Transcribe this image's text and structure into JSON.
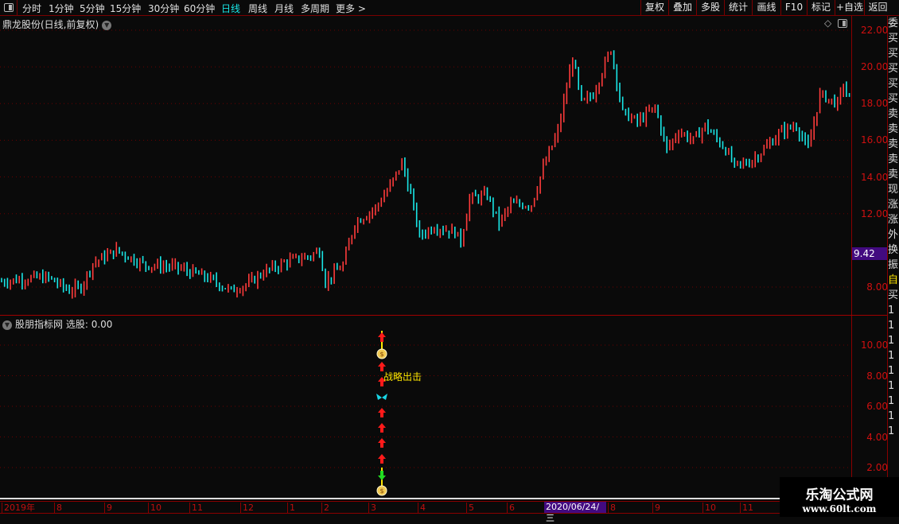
{
  "toolbar": {
    "periods": [
      "分时",
      "1分钟",
      "5分钟",
      "15分钟",
      "30分钟",
      "60分钟",
      "日线",
      "周线",
      "月线",
      "多周期",
      "更多 >"
    ],
    "active_period": "日线",
    "right_buttons": [
      "复权",
      "叠加",
      "多股",
      "统计",
      "画线",
      "F10",
      "标记",
      "+自选",
      "返回"
    ]
  },
  "chart": {
    "title": "鼎龙股份(日线,前复权)",
    "y_ticks": [
      "22.00",
      "20.00",
      "18.00",
      "16.00",
      "14.00",
      "12.00",
      "8.00"
    ],
    "current_price": "9.42",
    "colors": {
      "up": "#ff3b3b",
      "down": "#19e6e6",
      "grid": "#6a0000",
      "axis_text": "#d01010"
    }
  },
  "chart_data": {
    "type": "bar",
    "ylim": [
      7,
      22.5
    ],
    "price_trend": [
      [
        0,
        8.3
      ],
      [
        11,
        8.5
      ],
      [
        16,
        8.5
      ],
      [
        23,
        7.8
      ],
      [
        27,
        8.0
      ],
      [
        31,
        9.3
      ],
      [
        39,
        10.0
      ],
      [
        45,
        9.5
      ],
      [
        49,
        9.2
      ],
      [
        59,
        9.1
      ],
      [
        70,
        8.5
      ],
      [
        78,
        7.8
      ],
      [
        84,
        8.2
      ],
      [
        89,
        8.8
      ],
      [
        97,
        9.4
      ],
      [
        105,
        9.7
      ],
      [
        108,
        10.0
      ],
      [
        110,
        8.3
      ],
      [
        116,
        9.2
      ],
      [
        120,
        11.5
      ],
      [
        127,
        12.3
      ],
      [
        132,
        13.5
      ],
      [
        136,
        14.8
      ],
      [
        139,
        13.0
      ],
      [
        142,
        10.8
      ],
      [
        147,
        11.3
      ],
      [
        154,
        11.0
      ],
      [
        156,
        10.5
      ],
      [
        159,
        12.8
      ],
      [
        165,
        13.0
      ],
      [
        169,
        11.5
      ],
      [
        173,
        12.5
      ],
      [
        180,
        12.5
      ],
      [
        184,
        14.5
      ],
      [
        189,
        16.5
      ],
      [
        194,
        20.5
      ],
      [
        197,
        18.0
      ],
      [
        201,
        18.5
      ],
      [
        207,
        21.0
      ],
      [
        211,
        17.5
      ],
      [
        216,
        17.0
      ],
      [
        222,
        17.8
      ],
      [
        226,
        15.5
      ],
      [
        230,
        16.5
      ],
      [
        235,
        16.0
      ],
      [
        239,
        16.8
      ],
      [
        246,
        15.5
      ],
      [
        249,
        14.6
      ],
      [
        254,
        14.8
      ],
      [
        259,
        15.5
      ],
      [
        265,
        16.5
      ],
      [
        270,
        16.8
      ],
      [
        274,
        15.5
      ],
      [
        278,
        18.5
      ],
      [
        284,
        18.0
      ],
      [
        286,
        19.0
      ],
      [
        289,
        17.8
      ]
    ]
  },
  "indicator": {
    "title": "股朋指标网",
    "select_label": "选股: 0.00",
    "y_ticks": [
      "10.00",
      "8.00",
      "6.00",
      "4.00",
      "2.00"
    ],
    "signal_text": "战略出击"
  },
  "date_axis": {
    "labels": [
      "2019年",
      "8",
      "9",
      "10",
      "11",
      "12",
      "1",
      "2",
      "3",
      "4",
      "5",
      "6",
      "8",
      "9",
      "10",
      "11"
    ],
    "cursor_date": "2020/06/24/三"
  },
  "watermark": {
    "name": "乐淘公式网",
    "url": "www.60lt.com"
  },
  "right_column": [
    "委",
    "买",
    "买",
    "买",
    "买",
    "买",
    "卖",
    "卖",
    "卖",
    "卖",
    "卖",
    "现",
    "涨",
    "涨",
    "外",
    "换",
    "振",
    "自",
    "买",
    "1",
    "1",
    "1",
    "1",
    "1",
    "1",
    "1",
    "1",
    "1"
  ]
}
